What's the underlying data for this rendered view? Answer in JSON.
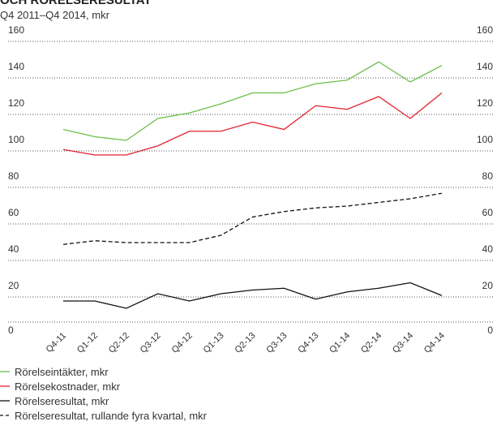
{
  "chart_data": {
    "type": "line",
    "title": "OCH RÖRELSERESULTAT",
    "subtitle": "Q4 2011–Q4 2014, mkr",
    "categories": [
      "Q4-11",
      "Q1-12",
      "Q2-12",
      "Q3-12",
      "Q4-12",
      "Q1-13",
      "Q2-13",
      "Q3-13",
      "Q4-13",
      "Q1-14",
      "Q2-14",
      "Q3-14",
      "Q4-14"
    ],
    "series": [
      {
        "name": "Rörelseintäkter, mkr",
        "color": "#6cbf4a",
        "dashed": false,
        "values": [
          110,
          106,
          104,
          116,
          119,
          124,
          130,
          130,
          135,
          137,
          147,
          136,
          145
        ]
      },
      {
        "name": "Rörelsekostnader, mkr",
        "color": "#e2202c",
        "dashed": false,
        "values": [
          99,
          96,
          96,
          101,
          109,
          109,
          114,
          110,
          123,
          121,
          128,
          116,
          130
        ]
      },
      {
        "name": "Rörelseresultat, mkr",
        "color": "#111111",
        "dashed": false,
        "values": [
          16,
          16,
          12,
          20,
          16,
          20,
          22,
          23,
          17,
          21,
          23,
          26,
          19
        ]
      },
      {
        "name": "Rörelseresultat, rullande fyra kvartal, mkr",
        "color": "#111111",
        "dashed": true,
        "values": [
          47,
          49,
          48,
          48,
          48,
          52,
          62,
          65,
          67,
          68,
          70,
          72,
          75
        ]
      }
    ],
    "ylim": [
      0,
      160
    ],
    "yticks": [
      0,
      20,
      40,
      60,
      80,
      100,
      120,
      140,
      160
    ],
    "grid": true
  }
}
